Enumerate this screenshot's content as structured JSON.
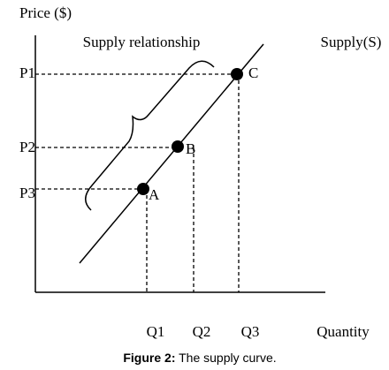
{
  "axis": {
    "y_label": "Price ($)",
    "x_label": "Quantity"
  },
  "title": "Supply relationship",
  "curve_label": "Supply(S)",
  "price_levels": [
    "P1",
    "P2",
    "P3"
  ],
  "quantity_levels": [
    "Q1",
    "Q2",
    "Q3"
  ],
  "points": [
    "A",
    "B",
    "C"
  ],
  "caption": {
    "label": "Figure 2:",
    "text": "The supply curve."
  }
}
